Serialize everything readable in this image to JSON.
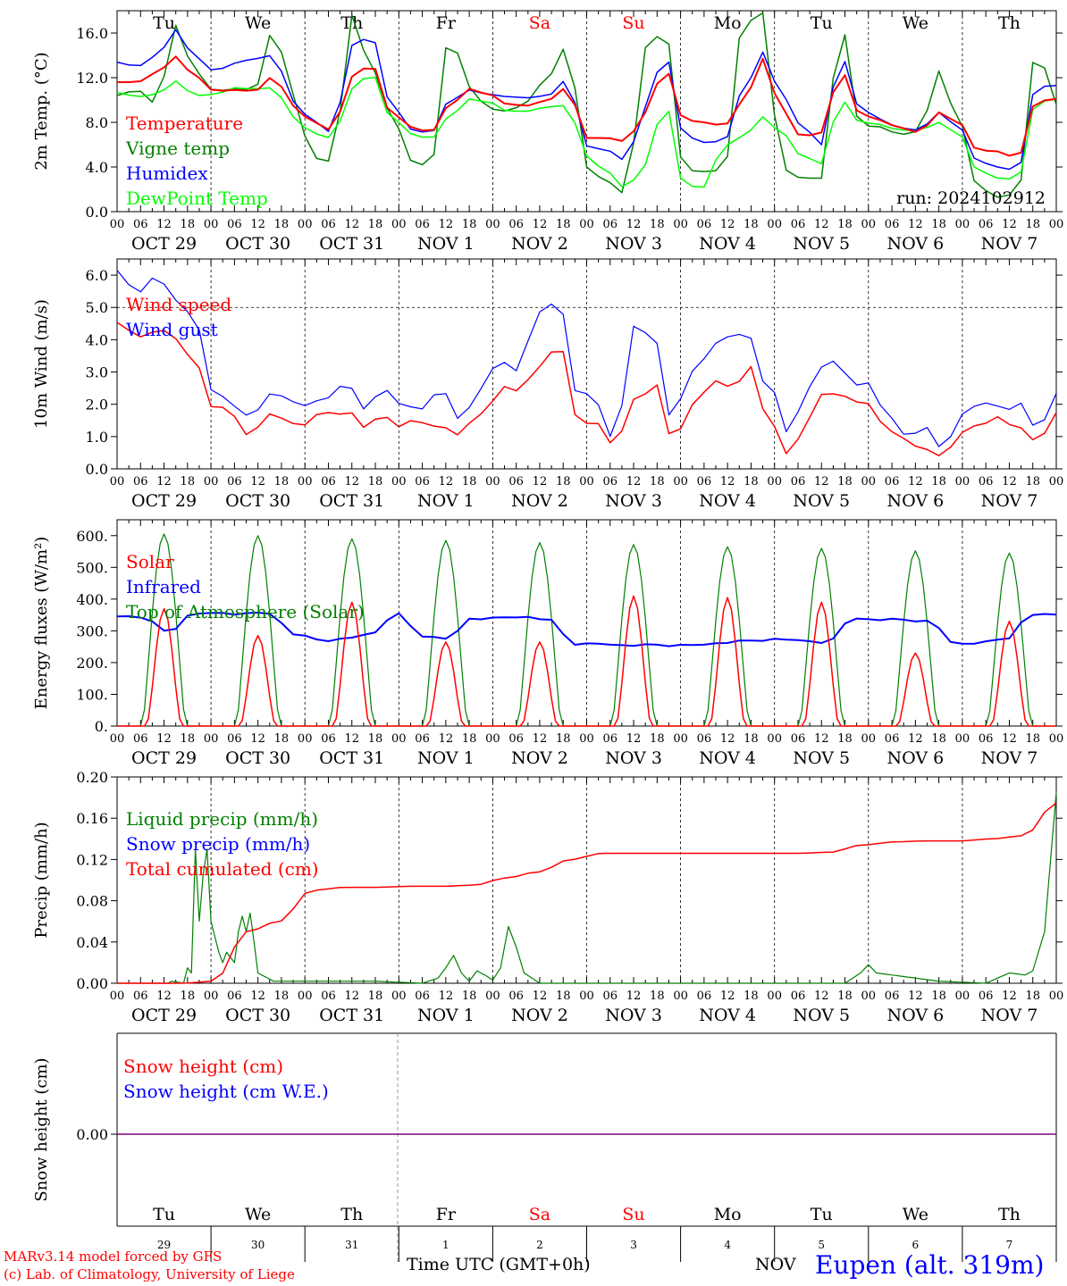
{
  "page": {
    "run_label": "run: 2024102912",
    "credit_line1": "MARv3.14 model forced by GFS",
    "credit_line2": "(c) Lab. of Climatology, University of Liege",
    "x_title": "Time UTC (GMT+0h)",
    "month_label": "NOV",
    "location": "Eupen (alt. 319m)"
  },
  "days": {
    "weekday_names": [
      "Tu",
      "We",
      "Th",
      "Fr",
      "Sa",
      "Su",
      "Mo",
      "Tu",
      "We",
      "Th"
    ],
    "weekday_colors": [
      "#000000",
      "#000000",
      "#000000",
      "#000000",
      "#ff0000",
      "#ff0000",
      "#000000",
      "#000000",
      "#000000",
      "#000000"
    ],
    "date_labels": [
      "OCT 29",
      "OCT 30",
      "OCT 31",
      "NOV  1",
      "NOV  2",
      "NOV  3",
      "NOV  4",
      "NOV  5",
      "NOV  6",
      "NOV  7"
    ],
    "day_numbers": [
      "29",
      "30",
      "31",
      "1",
      "2",
      "3",
      "4",
      "5",
      "6",
      "7"
    ],
    "hour_ticks": [
      "00",
      "06",
      "12",
      "18"
    ],
    "end_tick": "00"
  },
  "chart_data": [
    {
      "id": "temperature",
      "type": "line",
      "ylabel": "2m Temp. (°C)",
      "ylim": [
        0,
        18
      ],
      "yticks": [
        0,
        4,
        8,
        12,
        16
      ],
      "ytick_labels": [
        "0.0",
        "4.0",
        "8.0",
        "12.0",
        "16.0"
      ],
      "x": "hours since OCT 29 00 UTC (step 6h, 0-240)",
      "series": [
        {
          "name": "Temperature",
          "color": "#ff0000",
          "width": 2,
          "values": [
            11.6,
            11.6,
            12.4,
            13.9,
            12.1,
            10.8,
            10.9,
            10.8,
            12.1,
            9.5,
            8.0,
            7.3,
            12.1,
            13.2,
            8.9,
            7.6,
            7.1,
            9.5,
            11.0,
            10.5,
            9.6,
            9.5,
            10.0,
            11.1,
            6.6,
            6.6,
            6.3,
            8.9,
            12.8,
            8.2,
            8.0,
            7.7,
            9.8,
            13.7,
            9.0,
            6.7,
            7.1,
            12.6,
            8.7,
            8.2,
            7.5,
            7.1,
            8.9,
            8.0,
            5.5,
            5.4,
            4.8,
            9.9,
            10.1
          ]
        },
        {
          "name": "Vigne temp",
          "color": "#008000",
          "width": 1.5,
          "values": [
            10.4,
            10.9,
            9.7,
            16.7,
            12.5,
            10.8,
            11.0,
            10.9,
            16.3,
            10.5,
            4.8,
            4.5,
            17.6,
            12.8,
            8.9,
            4.6,
            4.0,
            15.8,
            11.2,
            9.2,
            9.0,
            9.9,
            12.1,
            14.8,
            4.0,
            2.7,
            1.6,
            14.7,
            16.2,
            3.7,
            3.6,
            3.7,
            16.8,
            17.8,
            3.8,
            3.0,
            3.0,
            16.7,
            7.7,
            7.6,
            6.9,
            7.2,
            12.6,
            8.2,
            2.2,
            1.3,
            1.6,
            14.6,
            9.6
          ]
        },
        {
          "name": "Humidex",
          "color": "#0000ff",
          "width": 1.5,
          "values": [
            13.4,
            13.0,
            13.9,
            16.3,
            13.8,
            12.6,
            13.3,
            13.7,
            14.0,
            9.9,
            8.1,
            7.1,
            14.9,
            15.7,
            9.7,
            7.4,
            7.0,
            9.9,
            10.9,
            10.5,
            10.3,
            10.2,
            10.4,
            11.8,
            5.9,
            5.5,
            4.6,
            9.4,
            14.1,
            6.8,
            6.2,
            6.3,
            10.8,
            14.3,
            10.3,
            7.7,
            6.0,
            13.9,
            9.2,
            8.3,
            7.5,
            7.3,
            8.9,
            7.6,
            4.5,
            4.0,
            3.7,
            11.2,
            11.3
          ]
        },
        {
          "name": "DewPoint Temp",
          "color": "#00ff00",
          "width": 1.5,
          "values": [
            10.7,
            10.3,
            10.5,
            11.7,
            10.4,
            10.5,
            11.1,
            11.0,
            11.1,
            8.5,
            7.0,
            6.6,
            11.0,
            12.4,
            8.5,
            7.0,
            6.5,
            8.5,
            10.1,
            9.8,
            9.0,
            9.0,
            9.4,
            9.5,
            5.0,
            3.6,
            2.1,
            4.2,
            9.7,
            2.3,
            2.2,
            5.9,
            6.7,
            8.5,
            7.0,
            5.0,
            4.3,
            10.0,
            8.0,
            7.8,
            7.3,
            7.3,
            8.0,
            7.0,
            3.7,
            3.0,
            2.9,
            9.8,
            10.1
          ]
        }
      ]
    },
    {
      "id": "wind",
      "type": "line",
      "ylabel": "10m Wind (m/s)",
      "ylim": [
        0,
        6.5
      ],
      "yticks": [
        0,
        1,
        2,
        3,
        4,
        5,
        6
      ],
      "ytick_labels": [
        "0.0",
        "1.0",
        "2.0",
        "3.0",
        "4.0",
        "5.0",
        "6.0"
      ],
      "reference_line": 5.0,
      "x": "hours since OCT 29 00 UTC (step 6h, 0-240)",
      "series": [
        {
          "name": "Wind speed",
          "color": "#ff0000",
          "width": 1.5,
          "values": [
            4.6,
            4.0,
            4.4,
            4.0,
            3.4,
            2.0,
            1.6,
            1.1,
            1.7,
            1.4,
            1.5,
            1.7,
            1.8,
            1.3,
            1.6,
            1.4,
            1.4,
            1.3,
            1.1,
            1.7,
            2.5,
            2.4,
            3.2,
            3.9,
            1.6,
            1.4,
            0.7,
            2.2,
            2.6,
            0.9,
            2.0,
            2.6,
            2.6,
            3.1,
            1.5,
            0.5,
            1.4,
            2.5,
            2.2,
            2.0,
            1.5,
            0.8,
            0.7,
            0.4,
            1.0,
            1.5,
            1.5,
            1.3,
            0.9,
            1.6
          ]
        },
        {
          "name": "Wind gust",
          "color": "#0000ff",
          "width": 1.2,
          "values": [
            6.3,
            5.4,
            5.9,
            5.4,
            4.6,
            2.5,
            2.0,
            1.5,
            2.5,
            2.0,
            2.0,
            2.3,
            2.5,
            2.0,
            2.4,
            1.9,
            2.0,
            2.3,
            1.6,
            2.5,
            3.3,
            3.2,
            4.8,
            5.3,
            2.4,
            2.0,
            1.0,
            4.4,
            4.1,
            1.5,
            3.0,
            3.8,
            4.1,
            4.1,
            2.5,
            1.1,
            2.5,
            3.3,
            3.0,
            2.6,
            1.9,
            1.1,
            1.2,
            0.7,
            1.6,
            2.0,
            2.0,
            1.9,
            1.3,
            2.3
          ]
        }
      ]
    },
    {
      "id": "energy",
      "type": "line",
      "ylabel": "Energy fluxes (W/m²)",
      "ylim": [
        0,
        650
      ],
      "yticks": [
        0,
        100,
        200,
        300,
        400,
        500,
        600
      ],
      "ytick_labels": [
        "0.",
        "100.",
        "200.",
        "300.",
        "400.",
        "500.",
        "600."
      ],
      "x": "hours since OCT 29 00 UTC",
      "solar_peaks": [
        370,
        285,
        390,
        265,
        265,
        410,
        405,
        390,
        230,
        330
      ],
      "toa_peaks": [
        605,
        600,
        590,
        585,
        578,
        572,
        565,
        560,
        552,
        545
      ],
      "series": [
        {
          "name": "Solar",
          "color": "#ff0000",
          "width": 1.5
        },
        {
          "name": "Infrared",
          "color": "#0000ff",
          "width": 2,
          "values": [
            345,
            345,
            295,
            355,
            355,
            355,
            355,
            290,
            270,
            275,
            290,
            355,
            285,
            275,
            340,
            340,
            345,
            335,
            260,
            258,
            255,
            255,
            255,
            255,
            265,
            268,
            275,
            268,
            265,
            340,
            335,
            335,
            330,
            260,
            262,
            275,
            350,
            352
          ]
        },
        {
          "name": "Top of Atmosphere (Solar)",
          "color": "#008000",
          "width": 1.2
        }
      ]
    },
    {
      "id": "precip",
      "type": "line",
      "ylabel": "Precip (mm/h)",
      "ylim": [
        0,
        0.2
      ],
      "yticks": [
        0,
        0.04,
        0.08,
        0.12,
        0.16,
        0.2
      ],
      "ytick_labels": [
        "0.00",
        "0.04",
        "0.08",
        "0.12",
        "0.16",
        "0.20"
      ],
      "x": "hours since OCT 29 00 UTC",
      "series": [
        {
          "name": "Liquid precip (mm/h)",
          "color": "#008000",
          "width": 1.2
        },
        {
          "name": "Snow precip (mm/h)",
          "color": "#0000ff",
          "width": 1.2
        },
        {
          "name": "Total cumulated (cm)",
          "color": "#ff0000",
          "width": 1.5,
          "values": [
            0.0,
            0.0,
            0.0,
            0.002,
            0.05,
            0.06,
            0.09,
            0.093,
            0.093,
            0.094,
            0.094,
            0.095,
            0.102,
            0.108,
            0.12,
            0.126,
            0.126,
            0.126,
            0.126,
            0.126,
            0.126,
            0.126,
            0.127,
            0.134,
            0.137,
            0.138,
            0.138,
            0.14,
            0.143,
            0.175
          ]
        }
      ]
    },
    {
      "id": "snow",
      "type": "line",
      "ylabel": "Snow height (cm)",
      "yticks": [
        0
      ],
      "ytick_labels": [
        "0.00"
      ],
      "series": [
        {
          "name": "Snow height (cm)",
          "color": "#ff0000",
          "values": [
            0,
            0
          ]
        },
        {
          "name": "Snow height (cm W.E.)",
          "color": "#0000ff",
          "values": [
            0,
            0
          ]
        }
      ]
    }
  ]
}
